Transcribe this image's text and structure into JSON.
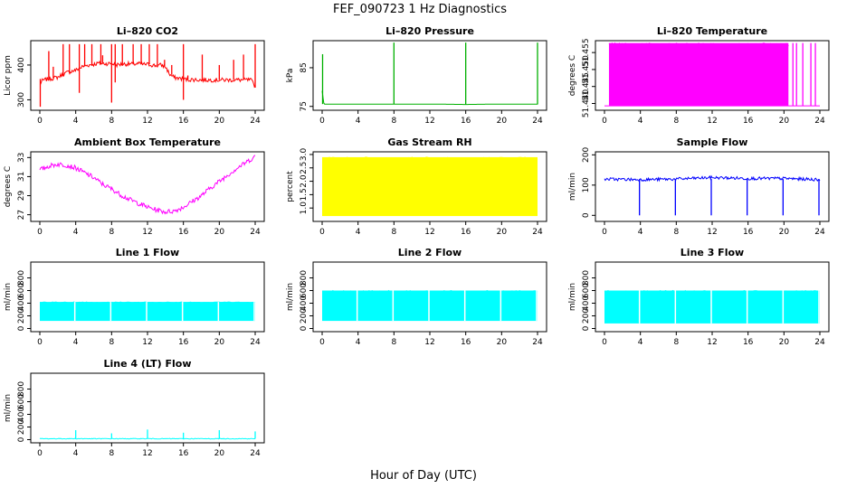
{
  "figure": {
    "title": "FEF_090723  1 Hz Diagnostics",
    "xlabel": "Hour of Day (UTC)"
  },
  "chart_data": [
    {
      "type": "line",
      "title": "Li–820 CO2",
      "ylabel": "Licor ppm",
      "color": "#ff0000",
      "xlim": [
        0,
        24
      ],
      "ylim": [
        270,
        470
      ],
      "xticks": [
        "0",
        "4",
        "8",
        "12",
        "16",
        "20",
        "24"
      ],
      "yticks": [
        {
          "v": 300,
          "label": "300"
        },
        {
          "v": 400,
          "label": "400"
        }
      ],
      "series": [
        {
          "x": [
            0,
            0.3,
            0.6,
            1,
            1.5,
            2,
            2.5,
            3,
            3.5,
            4,
            4.5,
            5,
            5.5,
            6,
            6.5,
            7,
            7.5,
            8,
            8.5,
            9,
            9.5,
            10,
            10.5,
            11,
            11.5,
            12,
            12.5,
            13,
            13.5,
            14,
            14.5,
            15,
            15.5,
            16,
            16.5,
            17,
            17.5,
            18,
            18.5,
            19,
            19.5,
            20,
            20.5,
            21,
            21.5,
            22,
            22.5,
            23,
            23.5,
            24
          ],
          "y": [
            345,
            355,
            358,
            360,
            362,
            365,
            372,
            378,
            382,
            385,
            392,
            398,
            400,
            402,
            405,
            404,
            404,
            405,
            400,
            402,
            403,
            403,
            403,
            404,
            402,
            402,
            400,
            398,
            400,
            395,
            372,
            364,
            362,
            360,
            358,
            358,
            358,
            357,
            357,
            357,
            357,
            357,
            357,
            357,
            357,
            357,
            357,
            357,
            357,
            340
          ],
          "spikes": [
            {
              "x": 0.05,
              "lo": 280,
              "hi": 360
            },
            {
              "x": 1.0,
              "lo": 358,
              "hi": 440
            },
            {
              "x": 1.5,
              "lo": 362,
              "hi": 395
            },
            {
              "x": 2.6,
              "lo": 370,
              "hi": 460
            },
            {
              "x": 3.3,
              "lo": 378,
              "hi": 460
            },
            {
              "x": 4.4,
              "lo": 320,
              "hi": 460
            },
            {
              "x": 5.0,
              "lo": 396,
              "hi": 460
            },
            {
              "x": 5.8,
              "lo": 400,
              "hi": 460
            },
            {
              "x": 6.8,
              "lo": 404,
              "hi": 460
            },
            {
              "x": 7.0,
              "lo": 404,
              "hi": 428
            },
            {
              "x": 8.0,
              "lo": 292,
              "hi": 460
            },
            {
              "x": 8.4,
              "lo": 350,
              "hi": 460
            },
            {
              "x": 9.2,
              "lo": 400,
              "hi": 460
            },
            {
              "x": 10.4,
              "lo": 402,
              "hi": 460
            },
            {
              "x": 11.3,
              "lo": 402,
              "hi": 460
            },
            {
              "x": 12.2,
              "lo": 402,
              "hi": 460
            },
            {
              "x": 13.1,
              "lo": 398,
              "hi": 460
            },
            {
              "x": 13.9,
              "lo": 395,
              "hi": 415
            },
            {
              "x": 14.7,
              "lo": 372,
              "hi": 400
            },
            {
              "x": 16.0,
              "lo": 300,
              "hi": 460
            },
            {
              "x": 16.5,
              "lo": 358,
              "hi": 370
            },
            {
              "x": 18.1,
              "lo": 357,
              "hi": 430
            },
            {
              "x": 20.0,
              "lo": 357,
              "hi": 400
            },
            {
              "x": 21.6,
              "lo": 357,
              "hi": 415
            },
            {
              "x": 22.7,
              "lo": 357,
              "hi": 430
            },
            {
              "x": 24.0,
              "lo": 335,
              "hi": 460
            }
          ]
        }
      ]
    },
    {
      "type": "line",
      "title": "Li–820 Pressure",
      "ylabel": "kPa",
      "color": "#00b000",
      "xlim": [
        0,
        24
      ],
      "ylim": [
        74,
        92
      ],
      "xticks": [
        "0",
        "4",
        "8",
        "12",
        "16",
        "20",
        "24"
      ],
      "yticks": [
        {
          "v": 75,
          "label": "75"
        },
        {
          "v": 85,
          "label": "85"
        }
      ],
      "series": [
        {
          "x": [
            0,
            0.2,
            1,
            4,
            8,
            12,
            16,
            20,
            23.9,
            24
          ],
          "y": [
            79,
            75.6,
            75.6,
            75.6,
            75.6,
            75.6,
            75.5,
            75.6,
            75.6,
            75.6
          ],
          "spikes": [
            {
              "x": 0.05,
              "lo": 75.6,
              "hi": 88.5
            },
            {
              "x": 8.0,
              "lo": 75.6,
              "hi": 91.5
            },
            {
              "x": 16.0,
              "lo": 75.5,
              "hi": 91.5
            },
            {
              "x": 24.0,
              "lo": 75.5,
              "hi": 91.5
            }
          ]
        }
      ]
    },
    {
      "type": "line",
      "title": "Li–820 Temperature",
      "ylabel": "degrees C",
      "color": "#ff00ff",
      "xlim": [
        0,
        24
      ],
      "ylim": [
        51.438,
        51.4585
      ],
      "xticks": [
        "0",
        "4",
        "8",
        "12",
        "16",
        "20",
        "24"
      ],
      "yticks": [
        {
          "v": 51.44,
          "label": "51.440"
        },
        {
          "v": 51.445,
          "label": "51.445"
        },
        {
          "v": 51.45,
          "label": "51.450"
        },
        {
          "v": 51.455,
          "label": "51.455"
        }
      ],
      "series": [
        {
          "x": [
            0,
            24
          ],
          "y": [
            51.4393,
            51.4393
          ],
          "band": {
            "x0": 0.5,
            "x1": 20.5,
            "lo": 51.4393,
            "hi": 51.4578
          },
          "spikes": [
            {
              "x": 21.0,
              "lo": 51.4393,
              "hi": 51.4578
            },
            {
              "x": 21.4,
              "lo": 51.4393,
              "hi": 51.4578
            },
            {
              "x": 22.1,
              "lo": 51.4393,
              "hi": 51.4578
            },
            {
              "x": 23.0,
              "lo": 51.4393,
              "hi": 51.4578
            },
            {
              "x": 23.5,
              "lo": 51.4393,
              "hi": 51.4578
            }
          ]
        }
      ]
    },
    {
      "type": "line",
      "title": "Ambient Box Temperature",
      "ylabel": "degrees C",
      "color": "#ff00ff",
      "xlim": [
        0,
        24
      ],
      "ylim": [
        26.3,
        33.6
      ],
      "xticks": [
        "0",
        "4",
        "8",
        "12",
        "16",
        "20",
        "24"
      ],
      "yticks": [
        {
          "v": 27,
          "label": "27"
        },
        {
          "v": 29,
          "label": "29"
        },
        {
          "v": 31,
          "label": "31"
        },
        {
          "v": 33,
          "label": "33"
        }
      ],
      "series": [
        {
          "x": [
            0,
            1,
            2,
            3,
            4,
            5,
            6,
            7,
            8,
            9,
            10,
            11,
            12,
            13,
            14,
            15,
            16,
            17,
            18,
            19,
            20,
            21,
            22,
            23,
            24
          ],
          "y": [
            31.7,
            32.1,
            32.3,
            32.2,
            31.9,
            31.4,
            30.9,
            30.2,
            29.7,
            29.1,
            28.6,
            28.2,
            27.8,
            27.5,
            27.3,
            27.4,
            27.8,
            28.4,
            29.0,
            29.8,
            30.5,
            31.2,
            31.9,
            32.5,
            33.1
          ],
          "noise": 0.5
        }
      ]
    },
    {
      "type": "line",
      "title": "Gas Stream RH",
      "ylabel": "percent",
      "color": "#ffff00",
      "xlim": [
        0,
        24
      ],
      "ylim": [
        0.5,
        3.1
      ],
      "xticks": [
        "0",
        "4",
        "8",
        "12",
        "16",
        "20",
        "24"
      ],
      "yticks": [
        {
          "v": 1.0,
          "label": "1.0"
        },
        {
          "v": 1.5,
          "label": "1.5"
        },
        {
          "v": 2.0,
          "label": "2.0"
        },
        {
          "v": 2.5,
          "label": "2.5"
        },
        {
          "v": 3.0,
          "label": "3.0"
        }
      ],
      "series": [
        {
          "x": [
            0,
            24
          ],
          "y": [
            2.8,
            2.8
          ],
          "band": {
            "x0": 0,
            "x1": 24,
            "lo": 0.7,
            "hi": 2.9
          }
        }
      ]
    },
    {
      "type": "line",
      "title": "Sample Flow",
      "ylabel": "ml/min",
      "color": "#0000ff",
      "xlim": [
        0,
        24
      ],
      "ylim": [
        -20,
        210
      ],
      "xticks": [
        "0",
        "4",
        "8",
        "12",
        "16",
        "20",
        "24"
      ],
      "yticks": [
        {
          "v": 0,
          "label": "0"
        },
        {
          "v": 100,
          "label": "100"
        },
        {
          "v": 200,
          "label": "200"
        }
      ],
      "series": [
        {
          "x": [
            0,
            4,
            8,
            12,
            16,
            20,
            24
          ],
          "y": [
            120,
            118,
            120,
            125,
            122,
            122,
            118
          ],
          "noise": 10,
          "spikes": [
            {
              "x": 3.9,
              "lo": 0,
              "hi": 120
            },
            {
              "x": 7.9,
              "lo": 0,
              "hi": 120
            },
            {
              "x": 11.9,
              "lo": 0,
              "hi": 120
            },
            {
              "x": 15.9,
              "lo": 0,
              "hi": 120
            },
            {
              "x": 19.9,
              "lo": 0,
              "hi": 120
            },
            {
              "x": 23.9,
              "lo": 0,
              "hi": 120
            }
          ]
        }
      ]
    },
    {
      "type": "line",
      "title": "Line 1 Flow",
      "ylabel": "ml/min",
      "color": "#00ffff",
      "xlim": [
        0,
        24
      ],
      "ylim": [
        -50,
        1050
      ],
      "xticks": [
        "0",
        "4",
        "8",
        "12",
        "16",
        "20",
        "24"
      ],
      "yticks": [
        {
          "v": 0,
          "label": "0"
        },
        {
          "v": 200,
          "label": "200"
        },
        {
          "v": 400,
          "label": "400"
        },
        {
          "v": 600,
          "label": "600"
        },
        {
          "v": 800,
          "label": "800"
        }
      ],
      "series": [
        {
          "x": [
            0,
            24
          ],
          "y": [
            400,
            400
          ],
          "band": {
            "x0": 0,
            "x1": 24,
            "lo": 120,
            "hi": 420
          },
          "gaps": [
            3.9,
            7.9,
            11.9,
            15.9,
            19.9,
            23.9
          ]
        }
      ]
    },
    {
      "type": "line",
      "title": "Line 2 Flow",
      "ylabel": "ml/min",
      "color": "#00ffff",
      "xlim": [
        0,
        24
      ],
      "ylim": [
        -50,
        1050
      ],
      "xticks": [
        "0",
        "4",
        "8",
        "12",
        "16",
        "20",
        "24"
      ],
      "yticks": [
        {
          "v": 0,
          "label": "0"
        },
        {
          "v": 200,
          "label": "200"
        },
        {
          "v": 400,
          "label": "400"
        },
        {
          "v": 600,
          "label": "600"
        },
        {
          "v": 800,
          "label": "800"
        }
      ],
      "series": [
        {
          "x": [
            0,
            24
          ],
          "y": [
            580,
            580
          ],
          "band": {
            "x0": 0,
            "x1": 24,
            "lo": 120,
            "hi": 600
          },
          "gaps": [
            3.9,
            7.9,
            11.9,
            15.9,
            19.9,
            23.9
          ]
        }
      ]
    },
    {
      "type": "line",
      "title": "Line 3 Flow",
      "ylabel": "ml/min",
      "color": "#00ffff",
      "xlim": [
        0,
        24
      ],
      "ylim": [
        -50,
        1050
      ],
      "xticks": [
        "0",
        "4",
        "8",
        "12",
        "16",
        "20",
        "24"
      ],
      "yticks": [
        {
          "v": 0,
          "label": "0"
        },
        {
          "v": 200,
          "label": "200"
        },
        {
          "v": 400,
          "label": "400"
        },
        {
          "v": 600,
          "label": "600"
        },
        {
          "v": 800,
          "label": "800"
        }
      ],
      "series": [
        {
          "x": [
            0,
            24
          ],
          "y": [
            580,
            580
          ],
          "band": {
            "x0": 0,
            "x1": 24,
            "lo": 80,
            "hi": 600
          },
          "gaps": [
            3.9,
            7.9,
            11.9,
            15.9,
            19.9,
            23.9
          ]
        }
      ]
    },
    {
      "type": "line",
      "title": "Line 4 (LT) Flow",
      "ylabel": "ml/min",
      "color": "#00ffff",
      "xlim": [
        0,
        24
      ],
      "ylim": [
        -50,
        1050
      ],
      "xticks": [
        "0",
        "4",
        "8",
        "12",
        "16",
        "20",
        "24"
      ],
      "yticks": [
        {
          "v": 0,
          "label": "0"
        },
        {
          "v": 200,
          "label": "200"
        },
        {
          "v": 400,
          "label": "400"
        },
        {
          "v": 600,
          "label": "600"
        },
        {
          "v": 800,
          "label": "800"
        }
      ],
      "series": [
        {
          "x": [
            0,
            24
          ],
          "y": [
            15,
            15
          ],
          "noise": 10,
          "spikes": [
            {
              "x": 4.0,
              "lo": 15,
              "hi": 150
            },
            {
              "x": 8.0,
              "lo": 15,
              "hi": 100
            },
            {
              "x": 12.0,
              "lo": 15,
              "hi": 160
            },
            {
              "x": 16.0,
              "lo": 15,
              "hi": 110
            },
            {
              "x": 20.0,
              "lo": 15,
              "hi": 150
            },
            {
              "x": 24.0,
              "lo": 15,
              "hi": 130
            }
          ]
        }
      ]
    }
  ]
}
